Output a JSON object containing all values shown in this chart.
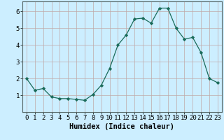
{
  "x": [
    0,
    1,
    2,
    3,
    4,
    5,
    6,
    7,
    8,
    9,
    10,
    11,
    12,
    13,
    14,
    15,
    16,
    17,
    18,
    19,
    20,
    21,
    22,
    23
  ],
  "y": [
    2.0,
    1.3,
    1.4,
    0.9,
    0.8,
    0.8,
    0.75,
    0.7,
    1.05,
    1.6,
    2.6,
    4.0,
    4.6,
    5.55,
    5.6,
    5.3,
    6.2,
    6.2,
    5.0,
    4.35,
    4.45,
    3.55,
    2.0,
    1.75
  ],
  "title": "",
  "xlabel": "Humidex (Indice chaleur)",
  "ylabel": "",
  "xlim": [
    -0.5,
    23.5
  ],
  "ylim": [
    0,
    6.6
  ],
  "yticks": [
    1,
    2,
    3,
    4,
    5,
    6
  ],
  "xticks": [
    0,
    1,
    2,
    3,
    4,
    5,
    6,
    7,
    8,
    9,
    10,
    11,
    12,
    13,
    14,
    15,
    16,
    17,
    18,
    19,
    20,
    21,
    22,
    23
  ],
  "line_color": "#1a6b5a",
  "marker": "D",
  "marker_size": 2.2,
  "bg_color": "#cceeff",
  "grid_color": "#c0a8a8",
  "tick_label_fontsize": 6.5,
  "xlabel_fontsize": 7.5,
  "linewidth": 0.9
}
